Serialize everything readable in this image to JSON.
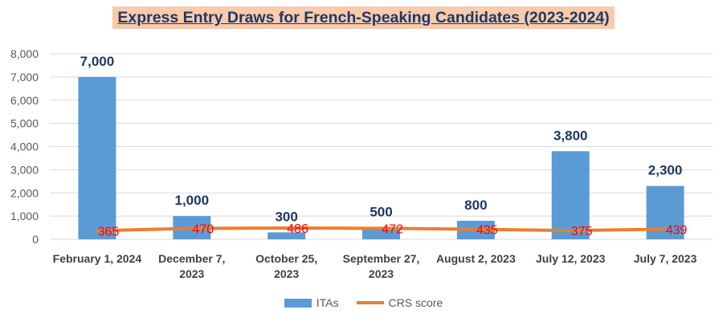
{
  "chart_data": {
    "type": "bar",
    "title": "Express Entry Draws for French-Speaking Candidates (2023-2024)",
    "categories": [
      [
        "February 1, 2024"
      ],
      [
        "December 7,",
        "2023"
      ],
      [
        "October 25,",
        "2023"
      ],
      [
        "September 27,",
        "2023"
      ],
      [
        "August 2, 2023"
      ],
      [
        "July 12, 2023"
      ],
      [
        "July 7, 2023"
      ]
    ],
    "series": [
      {
        "name": "ITAs",
        "kind": "bar",
        "color": "#5b9bd5",
        "values": [
          7000,
          1000,
          300,
          500,
          800,
          3800,
          2300
        ],
        "labels": [
          "7,000",
          "1,000",
          "300",
          "500",
          "800",
          "3,800",
          "2,300"
        ]
      },
      {
        "name": "CRS score",
        "kind": "line",
        "color": "#ed7d31",
        "values": [
          365,
          470,
          486,
          472,
          435,
          375,
          439
        ],
        "labels": [
          "365",
          "470",
          "486",
          "472",
          "435",
          "375",
          "439"
        ]
      }
    ],
    "ylim": [
      0,
      8000
    ],
    "yticks": [
      "0",
      "1,000",
      "2,000",
      "3,000",
      "4,000",
      "5,000",
      "6,000",
      "7,000",
      "8,000"
    ],
    "grid": true,
    "legend_position": "bottom"
  }
}
